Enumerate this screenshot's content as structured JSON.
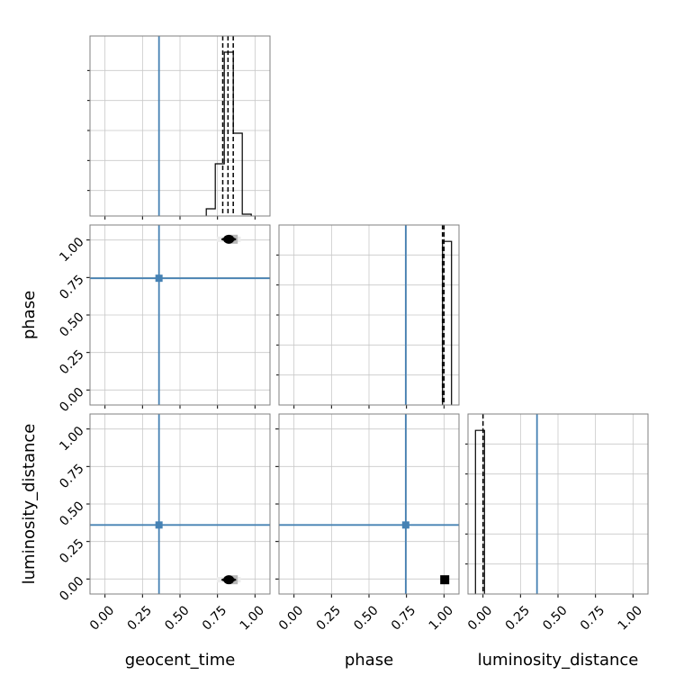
{
  "chart_data": {
    "type": "corner",
    "parameters": [
      "geocent_time",
      "phase",
      "luminosity_distance"
    ],
    "truth_color": "#4682b4",
    "truths": {
      "geocent_time": 0.36,
      "phase": 0.745,
      "luminosity_distance": 0.36
    },
    "axis_range": [
      -0.1,
      1.1
    ],
    "ticks": [
      0.0,
      0.25,
      0.5,
      0.75,
      1.0
    ],
    "tick_labels": [
      "0.00",
      "0.25",
      "0.50",
      "0.75",
      "1.00"
    ],
    "grid": true,
    "diagonal": [
      {
        "param": "geocent_time",
        "bins": [
          [
            0.675,
            0.735,
            0.04
          ],
          [
            0.735,
            0.795,
            0.29
          ],
          [
            0.795,
            0.855,
            0.91
          ],
          [
            0.855,
            0.915,
            0.46
          ],
          [
            0.915,
            0.975,
            0.01
          ]
        ],
        "ymax": 1.0,
        "quantiles": [
          0.785,
          0.82,
          0.855
        ],
        "quantile_style": "dashed"
      },
      {
        "param": "phase",
        "bins": [
          [
            0.99,
            1.05,
            1.0
          ]
        ],
        "ymax": 1.1,
        "quantiles": [
          0.99,
          1.0
        ],
        "quantile_style": "dashed"
      },
      {
        "param": "luminosity_distance",
        "bins": [
          [
            -0.05,
            0.01,
            1.0
          ]
        ],
        "ymax": 1.1,
        "quantiles": [
          0.0
        ],
        "quantile_style": "dashed"
      }
    ],
    "scatter": [
      {
        "x": "geocent_time",
        "y": "phase",
        "center": [
          0.825,
          1.005
        ],
        "spread_x": 0.05
      },
      {
        "x": "geocent_time",
        "y": "luminosity_distance",
        "center": [
          0.825,
          -0.005
        ],
        "spread_x": 0.05
      },
      {
        "x": "phase",
        "y": "luminosity_distance",
        "point": [
          1.005,
          -0.005
        ]
      }
    ]
  }
}
